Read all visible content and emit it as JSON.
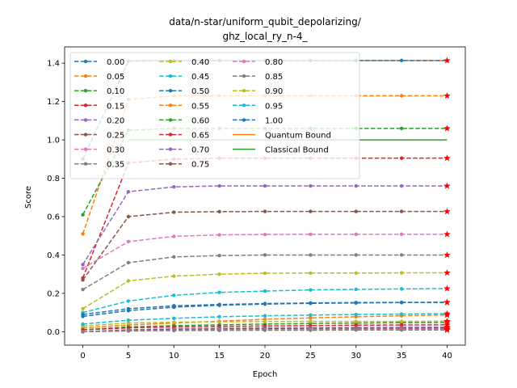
{
  "chart_data": {
    "type": "line",
    "title_line1": "data/n-star/uniform_qubit_depolarizing/",
    "title_line2": "ghz_local_ry_n-4_",
    "xlabel": "Epoch",
    "ylabel": "Score",
    "xlim": [
      -2,
      42
    ],
    "ylim": [
      -0.07,
      1.485
    ],
    "x_ticks": [
      0,
      5,
      10,
      15,
      20,
      25,
      30,
      35,
      40
    ],
    "y_ticks": [
      0.0,
      0.2,
      0.4,
      0.6,
      0.8,
      1.0,
      1.2,
      1.4
    ],
    "x": [
      0,
      5,
      10,
      15,
      20,
      25,
      30,
      35,
      40
    ],
    "legend_location": "upper-left",
    "series": [
      {
        "name": "0.00",
        "color": "#1f77b4",
        "values": [
          0.9,
          1.41,
          1.414,
          1.414,
          1.414,
          1.414,
          1.414,
          1.414,
          1.414
        ]
      },
      {
        "name": "0.05",
        "color": "#ff7f0e",
        "values": [
          0.51,
          1.21,
          1.23,
          1.23,
          1.23,
          1.23,
          1.23,
          1.23,
          1.23
        ]
      },
      {
        "name": "0.10",
        "color": "#2ca02c",
        "values": [
          0.61,
          1.05,
          1.06,
          1.06,
          1.06,
          1.06,
          1.06,
          1.06,
          1.06
        ]
      },
      {
        "name": "0.15",
        "color": "#d62728",
        "values": [
          0.28,
          0.88,
          0.9,
          0.905,
          0.905,
          0.905,
          0.905,
          0.905,
          0.905
        ]
      },
      {
        "name": "0.20",
        "color": "#9467bd",
        "values": [
          0.35,
          0.73,
          0.755,
          0.76,
          0.76,
          0.76,
          0.76,
          0.76,
          0.76
        ]
      },
      {
        "name": "0.25",
        "color": "#8c564b",
        "values": [
          0.27,
          0.6,
          0.623,
          0.626,
          0.627,
          0.627,
          0.627,
          0.627,
          0.627
        ]
      },
      {
        "name": "0.30",
        "color": "#e377c2",
        "values": [
          0.33,
          0.47,
          0.497,
          0.505,
          0.507,
          0.508,
          0.508,
          0.508,
          0.508
        ]
      },
      {
        "name": "0.35",
        "color": "#7f7f7f",
        "values": [
          0.22,
          0.36,
          0.39,
          0.397,
          0.4,
          0.4,
          0.4,
          0.4,
          0.4
        ]
      },
      {
        "name": "0.40",
        "color": "#bcbd22",
        "values": [
          0.12,
          0.265,
          0.29,
          0.3,
          0.305,
          0.306,
          0.306,
          0.307,
          0.307
        ]
      },
      {
        "name": "0.45",
        "color": "#17becf",
        "values": [
          0.1,
          0.16,
          0.19,
          0.205,
          0.212,
          0.218,
          0.221,
          0.223,
          0.225
        ]
      },
      {
        "name": "0.50",
        "color": "#1f77b4",
        "values": [
          0.09,
          0.12,
          0.135,
          0.142,
          0.147,
          0.15,
          0.152,
          0.153,
          0.154
        ]
      },
      {
        "name": "0.55",
        "color": "#ff7f0e",
        "values": [
          0.02,
          0.035,
          0.045,
          0.055,
          0.065,
          0.072,
          0.078,
          0.083,
          0.087
        ]
      },
      {
        "name": "0.60",
        "color": "#2ca02c",
        "values": [
          0.01,
          0.025,
          0.032,
          0.036,
          0.04,
          0.043,
          0.045,
          0.047,
          0.048
        ]
      },
      {
        "name": "0.65",
        "color": "#d62728",
        "values": [
          0.01,
          0.02,
          0.025,
          0.028,
          0.03,
          0.032,
          0.034,
          0.035,
          0.036
        ]
      },
      {
        "name": "0.70",
        "color": "#9467bd",
        "values": [
          0.0,
          0.01,
          0.015,
          0.018,
          0.02,
          0.021,
          0.022,
          0.023,
          0.024
        ]
      },
      {
        "name": "0.75",
        "color": "#8c564b",
        "values": [
          0.0,
          0.008,
          0.012,
          0.014,
          0.016,
          0.017,
          0.018,
          0.018,
          0.019
        ]
      },
      {
        "name": "0.80",
        "color": "#e377c2",
        "values": [
          0.0,
          0.005,
          0.008,
          0.01,
          0.011,
          0.012,
          0.012,
          0.013,
          0.013
        ]
      },
      {
        "name": "0.85",
        "color": "#7f7f7f",
        "values": [
          0.0,
          0.004,
          0.006,
          0.007,
          0.008,
          0.008,
          0.009,
          0.009,
          0.009
        ]
      },
      {
        "name": "0.90",
        "color": "#bcbd22",
        "values": [
          0.03,
          0.045,
          0.05,
          0.052,
          0.053,
          0.054,
          0.054,
          0.054,
          0.055
        ]
      },
      {
        "name": "0.95",
        "color": "#17becf",
        "values": [
          0.04,
          0.06,
          0.07,
          0.078,
          0.083,
          0.087,
          0.09,
          0.092,
          0.094
        ]
      },
      {
        "name": "1.00",
        "color": "#1f77b4",
        "values": [
          0.08,
          0.11,
          0.128,
          0.138,
          0.144,
          0.148,
          0.15,
          0.152,
          0.153
        ]
      }
    ],
    "bounds": [
      {
        "name": "Quantum Bound",
        "color": "#ff7f0e",
        "value": 1.414,
        "x_range": [
          5,
          40
        ]
      },
      {
        "name": "Classical Bound",
        "color": "#2ca02c",
        "value": 1.0,
        "x_range": [
          5,
          40
        ]
      }
    ],
    "end_marker": {
      "shape": "star",
      "color": "#ff0000"
    }
  }
}
